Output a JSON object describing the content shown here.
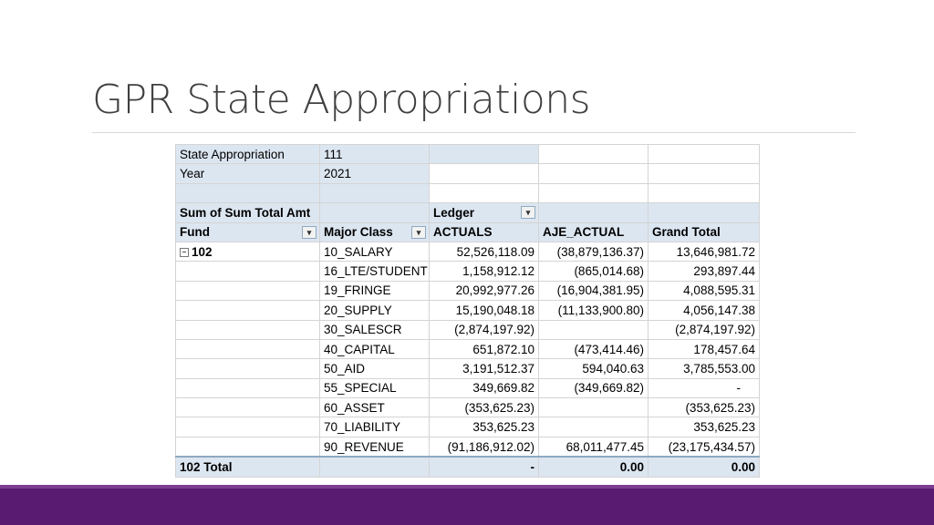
{
  "slide": {
    "title": "GPR State Appropriations"
  },
  "filters": [
    {
      "label": "State Appropriation",
      "value": "111",
      "icon": "filter-icon"
    },
    {
      "label": "Year",
      "value": "2021",
      "icon": "filter-icon"
    }
  ],
  "pivot": {
    "values_label": "Sum of Sum Total Amt",
    "column_field": "Ledger",
    "row_field_1": "Fund",
    "row_field_2": "Major Class",
    "columns": [
      "ACTUALS",
      "AJE_ACTUAL",
      "Grand Total"
    ],
    "group": "102",
    "rows": [
      {
        "class": "10_SALARY",
        "actuals": "52,526,118.09",
        "aje": "(38,879,136.37)",
        "total": "13,646,981.72"
      },
      {
        "class": "16_LTE/STUDENT",
        "actuals": "1,158,912.12",
        "aje": "(865,014.68)",
        "total": "293,897.44"
      },
      {
        "class": "19_FRINGE",
        "actuals": "20,992,977.26",
        "aje": "(16,904,381.95)",
        "total": "4,088,595.31"
      },
      {
        "class": "20_SUPPLY",
        "actuals": "15,190,048.18",
        "aje": "(11,133,900.80)",
        "total": "4,056,147.38"
      },
      {
        "class": "30_SALESCR",
        "actuals": "(2,874,197.92)",
        "aje": "",
        "total": "(2,874,197.92)"
      },
      {
        "class": "40_CAPITAL",
        "actuals": "651,872.10",
        "aje": "(473,414.46)",
        "total": "178,457.64"
      },
      {
        "class": "50_AID",
        "actuals": "3,191,512.37",
        "aje": "594,040.63",
        "total": "3,785,553.00"
      },
      {
        "class": "55_SPECIAL",
        "actuals": "349,669.82",
        "aje": "(349,669.82)",
        "total": "-"
      },
      {
        "class": "60_ASSET",
        "actuals": "(353,625.23)",
        "aje": "",
        "total": "(353,625.23)"
      },
      {
        "class": "70_LIABILITY",
        "actuals": "353,625.23",
        "aje": "",
        "total": "353,625.23"
      },
      {
        "class": "90_REVENUE",
        "actuals": "(91,186,912.02)",
        "aje": "68,011,477.45",
        "total": "(23,175,434.57)"
      }
    ],
    "total_row": {
      "label": "102 Total",
      "actuals": "-",
      "aje": "0.00",
      "total": "0.00"
    }
  },
  "colors": {
    "header_fill": "#dce6f1",
    "footer_bar": "#591a72",
    "title_text": "#404040"
  }
}
